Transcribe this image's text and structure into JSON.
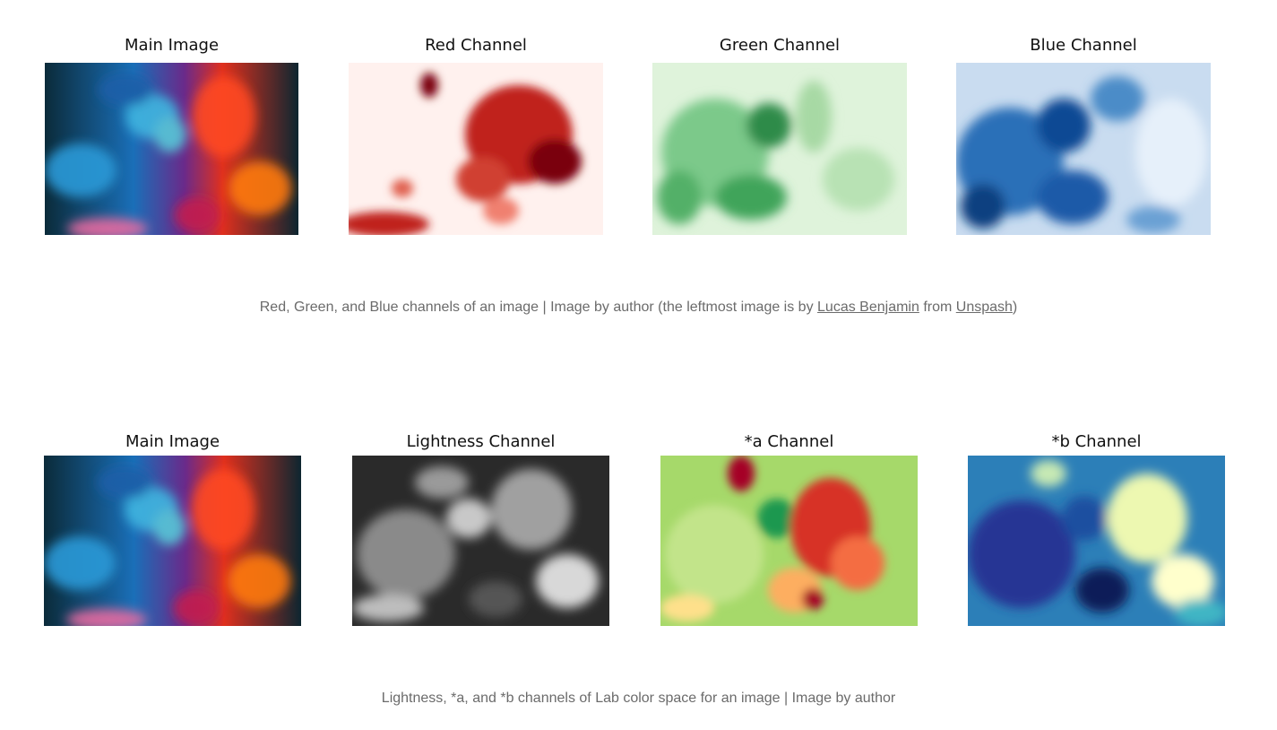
{
  "figure1": {
    "panels": [
      {
        "title": "Main Image",
        "kind": "main"
      },
      {
        "title": "Red Channel",
        "kind": "red"
      },
      {
        "title": "Green Channel",
        "kind": "green"
      },
      {
        "title": "Blue Channel",
        "kind": "blue"
      }
    ],
    "caption": {
      "text_before": "Red, Green, and Blue channels of an image | Image by author (the leftmost image is by ",
      "link1": "Lucas Benjamin",
      "text_between": " from ",
      "link2": "Unspash",
      "text_after": ")"
    }
  },
  "figure2": {
    "panels": [
      {
        "title": "Main Image",
        "kind": "main"
      },
      {
        "title": "Lightness Channel",
        "kind": "lightness"
      },
      {
        "title": "*a Channel",
        "kind": "a"
      },
      {
        "title": "*b Channel",
        "kind": "b"
      }
    ],
    "caption": {
      "text": "Lightness, *a, and *b channels of Lab color space for an image | Image by author"
    }
  },
  "colors": {
    "caption_text": "#6b6b6b",
    "title_text": "#111111"
  }
}
